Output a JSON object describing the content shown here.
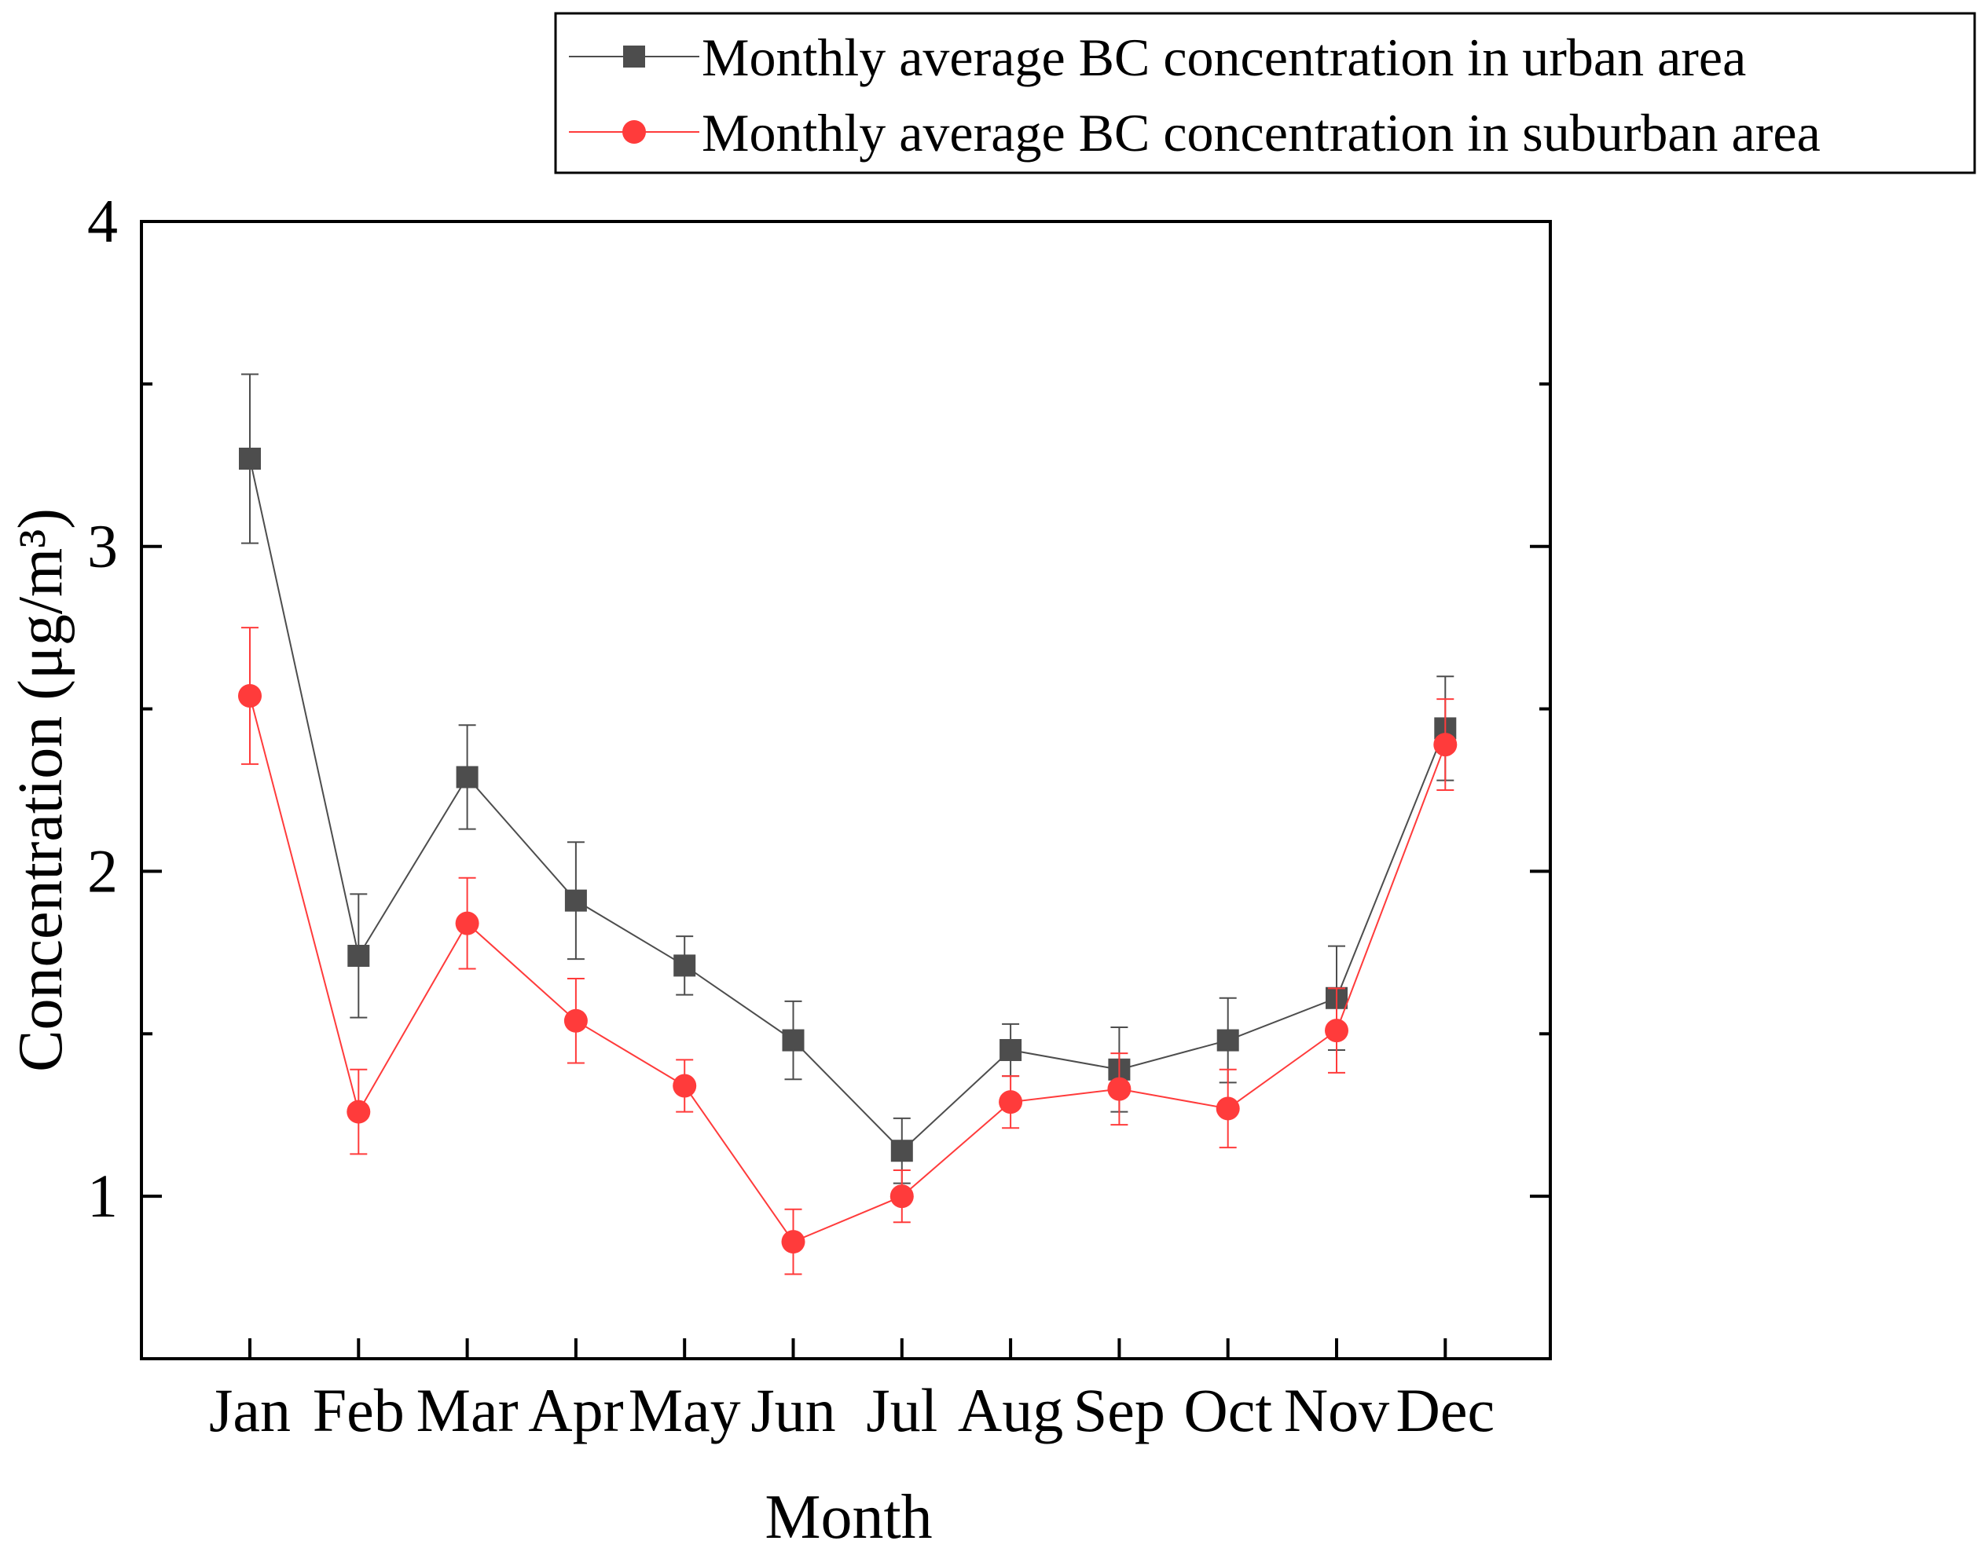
{
  "chart_data": {
    "type": "line",
    "title": "",
    "xlabel": "Month",
    "ylabel": "Concentration (μg/m³)",
    "categories": [
      "Jan",
      "Feb",
      "Mar",
      "Apr",
      "May",
      "Jun",
      "Jul",
      "Aug",
      "Sep",
      "Oct",
      "Nov",
      "Dec"
    ],
    "ylim": [
      0.5,
      4
    ],
    "yticks": [
      1,
      2,
      3,
      4
    ],
    "y_minor_ticks": [
      0.5,
      1.5,
      2.5,
      3.5
    ],
    "grid": false,
    "legend_position": "top-right",
    "series": [
      {
        "name": "Monthly average BC concentration in urban area",
        "marker": "square",
        "color": "#4d4d4d",
        "values": [
          3.27,
          1.74,
          2.29,
          1.91,
          1.71,
          1.48,
          1.14,
          1.45,
          1.39,
          1.48,
          1.61,
          2.44
        ],
        "errors": [
          0.26,
          0.19,
          0.16,
          0.18,
          0.09,
          0.12,
          0.1,
          0.08,
          0.13,
          0.13,
          0.16,
          0.16
        ]
      },
      {
        "name": "Monthly average BC concentration in suburban area",
        "marker": "circle",
        "color": "#ff3b3b",
        "values": [
          2.54,
          1.26,
          1.84,
          1.54,
          1.34,
          0.86,
          1.0,
          1.29,
          1.33,
          1.27,
          1.51,
          2.39
        ],
        "errors": [
          0.21,
          0.13,
          0.14,
          0.13,
          0.08,
          0.1,
          0.08,
          0.08,
          0.11,
          0.12,
          0.13,
          0.14
        ]
      }
    ]
  }
}
